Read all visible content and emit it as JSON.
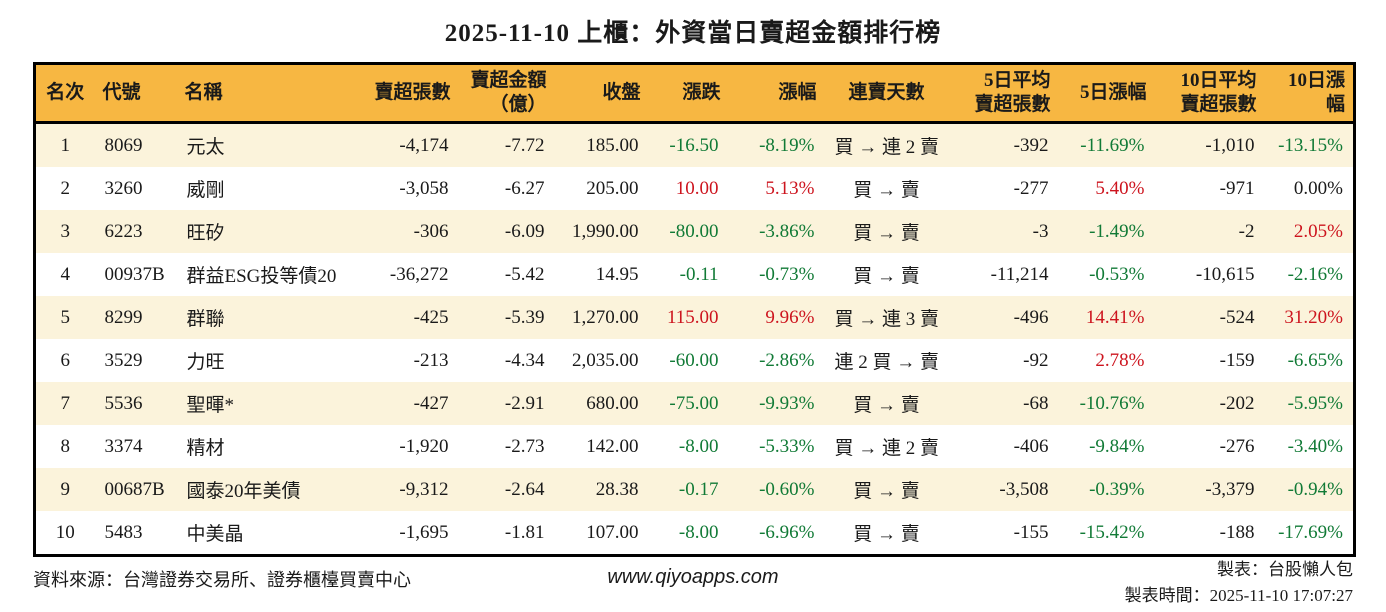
{
  "title": "2025-11-10 上櫃：外資當日賣超金額排行榜",
  "colors": {
    "up": "#cd141e",
    "down": "#117a36",
    "header_bg": "#f7b742",
    "row_alt_bg": "#fbf3db",
    "border": "#000000"
  },
  "chart_data": {
    "type": "table",
    "title": "2025-11-10 上櫃：外資當日賣超金額排行榜",
    "columns": [
      {
        "key": "rank",
        "label": "名次"
      },
      {
        "key": "code",
        "label": "代號"
      },
      {
        "key": "name",
        "label": "名稱"
      },
      {
        "key": "sell_volume",
        "label": "賣超張數"
      },
      {
        "key": "sell_amount",
        "label": "賣超金額\n（億）"
      },
      {
        "key": "close",
        "label": "收盤"
      },
      {
        "key": "change",
        "label": "漲跌"
      },
      {
        "key": "change_pct",
        "label": "漲幅"
      },
      {
        "key": "streak",
        "label": "連賣天數"
      },
      {
        "key": "avg5",
        "label": "5日平均\n賣超張數"
      },
      {
        "key": "pct5",
        "label": "5日漲幅"
      },
      {
        "key": "avg10",
        "label": "10日平均\n賣超張數"
      },
      {
        "key": "pct10",
        "label": "10日漲幅"
      }
    ],
    "rows": [
      {
        "rank": "1",
        "code": "8069",
        "name": "元太",
        "sell_volume": "-4,174",
        "sell_amount": "-7.72",
        "close": "185.00",
        "change": "-16.50",
        "change_pct": "-8.19%",
        "change_dir": "down",
        "streak": "買 → 連 2 賣",
        "avg5": "-392",
        "pct5": "-11.69%",
        "pct5_dir": "down",
        "avg10": "-1,010",
        "pct10": "-13.15%",
        "pct10_dir": "down"
      },
      {
        "rank": "2",
        "code": "3260",
        "name": "威剛",
        "sell_volume": "-3,058",
        "sell_amount": "-6.27",
        "close": "205.00",
        "change": "10.00",
        "change_pct": "5.13%",
        "change_dir": "up",
        "streak": "買 → 賣",
        "avg5": "-277",
        "pct5": "5.40%",
        "pct5_dir": "up",
        "avg10": "-971",
        "pct10": "0.00%",
        "pct10_dir": "flat"
      },
      {
        "rank": "3",
        "code": "6223",
        "name": "旺矽",
        "sell_volume": "-306",
        "sell_amount": "-6.09",
        "close": "1,990.00",
        "change": "-80.00",
        "change_pct": "-3.86%",
        "change_dir": "down",
        "streak": "買 → 賣",
        "avg5": "-3",
        "pct5": "-1.49%",
        "pct5_dir": "down",
        "avg10": "-2",
        "pct10": "2.05%",
        "pct10_dir": "up"
      },
      {
        "rank": "4",
        "code": "00937B",
        "name": "群益ESG投等債20",
        "sell_volume": "-36,272",
        "sell_amount": "-5.42",
        "close": "14.95",
        "change": "-0.11",
        "change_pct": "-0.73%",
        "change_dir": "down",
        "streak": "買 → 賣",
        "avg5": "-11,214",
        "pct5": "-0.53%",
        "pct5_dir": "down",
        "avg10": "-10,615",
        "pct10": "-2.16%",
        "pct10_dir": "down"
      },
      {
        "rank": "5",
        "code": "8299",
        "name": "群聯",
        "sell_volume": "-425",
        "sell_amount": "-5.39",
        "close": "1,270.00",
        "change": "115.00",
        "change_pct": "9.96%",
        "change_dir": "up",
        "streak": "買 → 連 3 賣",
        "avg5": "-496",
        "pct5": "14.41%",
        "pct5_dir": "up",
        "avg10": "-524",
        "pct10": "31.20%",
        "pct10_dir": "up"
      },
      {
        "rank": "6",
        "code": "3529",
        "name": "力旺",
        "sell_volume": "-213",
        "sell_amount": "-4.34",
        "close": "2,035.00",
        "change": "-60.00",
        "change_pct": "-2.86%",
        "change_dir": "down",
        "streak": "連 2 買 → 賣",
        "avg5": "-92",
        "pct5": "2.78%",
        "pct5_dir": "up",
        "avg10": "-159",
        "pct10": "-6.65%",
        "pct10_dir": "down"
      },
      {
        "rank": "7",
        "code": "5536",
        "name": "聖暉*",
        "sell_volume": "-427",
        "sell_amount": "-2.91",
        "close": "680.00",
        "change": "-75.00",
        "change_pct": "-9.93%",
        "change_dir": "down",
        "streak": "買 → 賣",
        "avg5": "-68",
        "pct5": "-10.76%",
        "pct5_dir": "down",
        "avg10": "-202",
        "pct10": "-5.95%",
        "pct10_dir": "down"
      },
      {
        "rank": "8",
        "code": "3374",
        "name": "精材",
        "sell_volume": "-1,920",
        "sell_amount": "-2.73",
        "close": "142.00",
        "change": "-8.00",
        "change_pct": "-5.33%",
        "change_dir": "down",
        "streak": "買 → 連 2 賣",
        "avg5": "-406",
        "pct5": "-9.84%",
        "pct5_dir": "down",
        "avg10": "-276",
        "pct10": "-3.40%",
        "pct10_dir": "down"
      },
      {
        "rank": "9",
        "code": "00687B",
        "name": "國泰20年美債",
        "sell_volume": "-9,312",
        "sell_amount": "-2.64",
        "close": "28.38",
        "change": "-0.17",
        "change_pct": "-0.60%",
        "change_dir": "down",
        "streak": "買 → 賣",
        "avg5": "-3,508",
        "pct5": "-0.39%",
        "pct5_dir": "down",
        "avg10": "-3,379",
        "pct10": "-0.94%",
        "pct10_dir": "down"
      },
      {
        "rank": "10",
        "code": "5483",
        "name": "中美晶",
        "sell_volume": "-1,695",
        "sell_amount": "-1.81",
        "close": "107.00",
        "change": "-8.00",
        "change_pct": "-6.96%",
        "change_dir": "down",
        "streak": "買 → 賣",
        "avg5": "-155",
        "pct5": "-15.42%",
        "pct5_dir": "down",
        "avg10": "-188",
        "pct10": "-17.69%",
        "pct10_dir": "down"
      }
    ]
  },
  "footer": {
    "source": "資料來源：台灣證券交易所、證券櫃檯買賣中心",
    "url": "www.qiyoapps.com",
    "maker": "製表：台股懶人包",
    "made_at": "製表時間：2025-11-10 17:07:27"
  }
}
